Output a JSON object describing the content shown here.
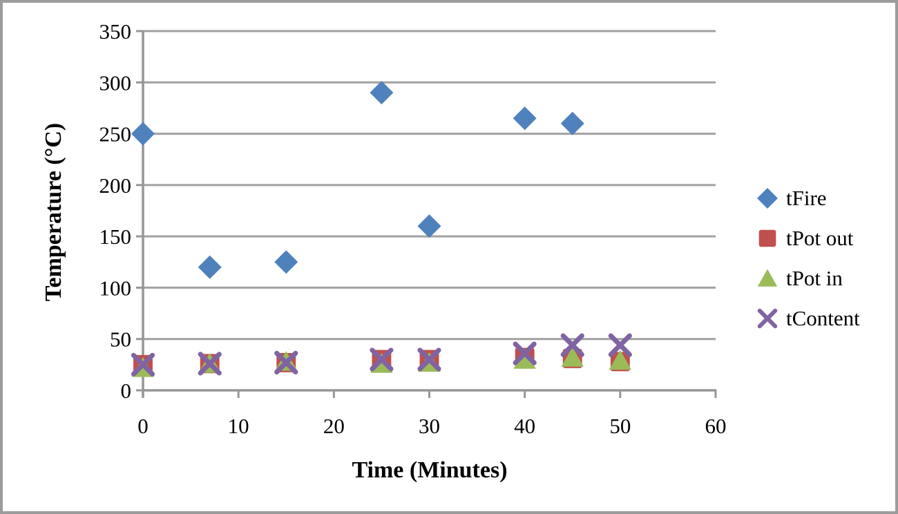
{
  "chart_data": {
    "type": "scatter",
    "title": "",
    "xlabel": "Time (Minutes)",
    "ylabel": "Temperature (°C)",
    "xlim": [
      0,
      60
    ],
    "ylim": [
      0,
      350
    ],
    "x_ticks": [
      0,
      10,
      20,
      30,
      40,
      50,
      60
    ],
    "y_ticks": [
      0,
      50,
      100,
      150,
      200,
      250,
      300,
      350
    ],
    "grid": "horizontal-only",
    "legend_position": "right",
    "series": [
      {
        "name": "tFire",
        "marker": "diamond",
        "color": "#4F81BD",
        "points": [
          [
            0,
            250
          ],
          [
            7,
            120
          ],
          [
            15,
            125
          ],
          [
            25,
            290
          ],
          [
            30,
            160
          ],
          [
            40,
            265
          ],
          [
            45,
            260
          ]
        ]
      },
      {
        "name": "tPot out",
        "marker": "square",
        "color": "#C0504D",
        "points": [
          [
            0,
            25
          ],
          [
            7,
            26
          ],
          [
            15,
            27
          ],
          [
            25,
            30
          ],
          [
            30,
            30
          ],
          [
            40,
            32
          ],
          [
            45,
            31
          ],
          [
            50,
            28
          ]
        ]
      },
      {
        "name": "tPot in",
        "marker": "triangle",
        "color": "#9BBB59",
        "points": [
          [
            0,
            22
          ],
          [
            7,
            26
          ],
          [
            15,
            28
          ],
          [
            25,
            26
          ],
          [
            30,
            27
          ],
          [
            40,
            30
          ],
          [
            45,
            32
          ],
          [
            50,
            29
          ]
        ]
      },
      {
        "name": "tContent",
        "marker": "x",
        "color": "#8064A2",
        "points": [
          [
            0,
            25
          ],
          [
            7,
            26
          ],
          [
            15,
            27
          ],
          [
            25,
            30
          ],
          [
            30,
            30
          ],
          [
            40,
            36
          ],
          [
            45,
            44
          ],
          [
            50,
            44
          ]
        ]
      }
    ]
  },
  "colors": {
    "gridline": "#a0a0a0",
    "axis": "#969696",
    "frame_border": "#9b9b9b",
    "text": "#000000"
  }
}
